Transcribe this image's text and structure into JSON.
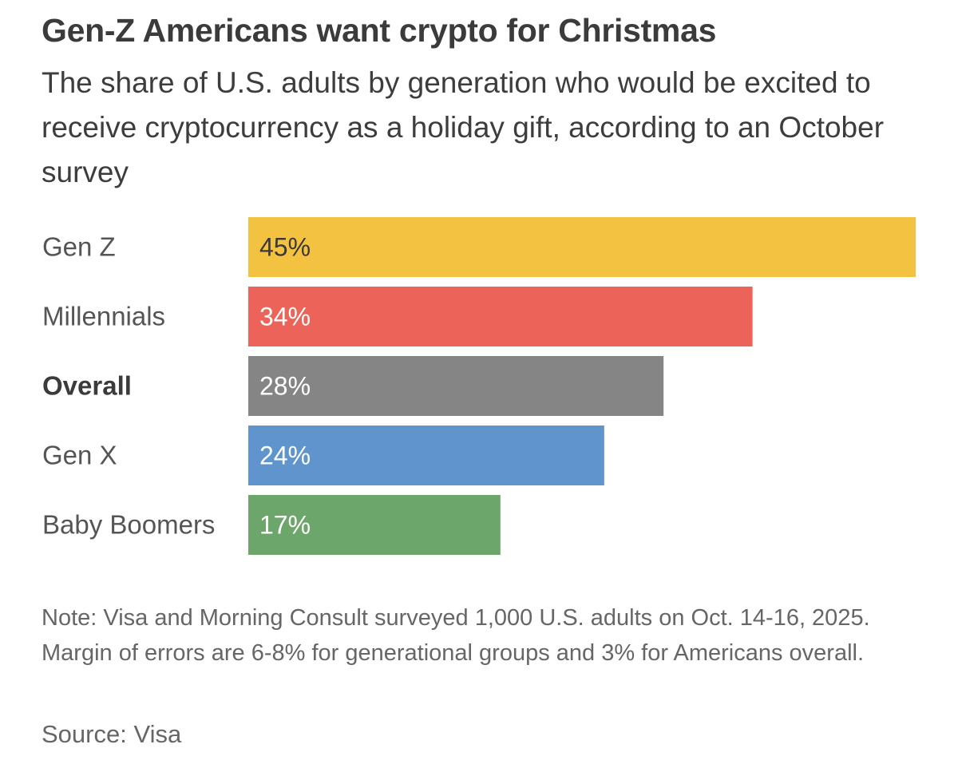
{
  "chart_data": {
    "type": "bar",
    "orientation": "horizontal",
    "title": "Gen-Z Americans want crypto for Christmas",
    "subtitle": "The share of U.S. adults by generation who would be excited to receive cryptocurrency as a holiday gift, according to an October survey",
    "categories": [
      "Gen Z",
      "Millennials",
      "Overall",
      "Gen X",
      "Baby Boomers"
    ],
    "values": [
      45,
      34,
      28,
      24,
      17
    ],
    "value_labels": [
      "45%",
      "34%",
      "28%",
      "24%",
      "17%"
    ],
    "colors": [
      "#f2c240",
      "#ec6459",
      "#858585",
      "#5f94cc",
      "#6da66a"
    ],
    "label_colors": [
      "#3a3a3a",
      "#ffffff",
      "#ffffff",
      "#ffffff",
      "#ffffff"
    ],
    "bold_category": "Overall",
    "xlim": [
      0,
      45
    ],
    "xlabel": "",
    "ylabel": "",
    "grid": false,
    "legend": "none"
  },
  "note": "Note: Visa and Morning Consult surveyed 1,000 U.S. adults on Oct. 14-16, 2025. Margin of errors are 6-8% for generational groups and 3% for Americans overall.",
  "source": "Source: Visa"
}
